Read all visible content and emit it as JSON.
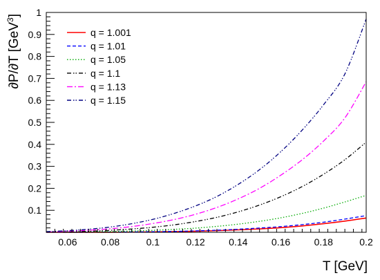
{
  "chart_data": {
    "type": "line",
    "xlabel": "T [GeV]",
    "ylabel_main": "∂P/∂T [GeV",
    "ylabel_sup": "3",
    "ylabel_close": "]",
    "xlim": [
      0.05,
      0.2
    ],
    "ylim": [
      0,
      1
    ],
    "x_ticks": [
      0.06,
      0.08,
      0.1,
      0.12,
      0.14,
      0.16,
      0.18,
      0.2
    ],
    "x_tick_labels": [
      "0.06",
      "0.08",
      "0.1",
      "0.12",
      "0.14",
      "0.16",
      "0.18",
      "0.2"
    ],
    "y_ticks": [
      0.1,
      0.2,
      0.3,
      0.4,
      0.5,
      0.6,
      0.7,
      0.8,
      0.9,
      1
    ],
    "y_tick_labels": [
      "0.1",
      "0.2",
      "0.3",
      "0.4",
      "0.5",
      "0.6",
      "0.7",
      "0.8",
      "0.9",
      "1"
    ],
    "grid": false,
    "legend_position": "top-left",
    "x": [
      0.05,
      0.06,
      0.07,
      0.08,
      0.09,
      0.1,
      0.11,
      0.12,
      0.13,
      0.14,
      0.15,
      0.16,
      0.17,
      0.18,
      0.19,
      0.2
    ],
    "series": [
      {
        "name": "q = 1.001",
        "color": "#ff0000",
        "dash": "solid",
        "values": [
          0.0,
          0.0,
          0.0001,
          0.0003,
          0.0008,
          0.0017,
          0.003,
          0.0048,
          0.0075,
          0.011,
          0.0155,
          0.021,
          0.029,
          0.039,
          0.051,
          0.065
        ]
      },
      {
        "name": "q = 1.01",
        "color": "#0000ff",
        "dash": "dashed",
        "values": [
          0.0,
          0.0001,
          0.0003,
          0.0007,
          0.0014,
          0.0025,
          0.004,
          0.0065,
          0.0095,
          0.014,
          0.0195,
          0.026,
          0.035,
          0.046,
          0.06,
          0.076
        ]
      },
      {
        "name": "q = 1.05",
        "color": "#00aa00",
        "dash": "dotted",
        "values": [
          0.0005,
          0.001,
          0.002,
          0.0035,
          0.006,
          0.009,
          0.0135,
          0.019,
          0.027,
          0.037,
          0.05,
          0.066,
          0.086,
          0.11,
          0.138,
          0.168
        ]
      },
      {
        "name": "q = 1.1",
        "color": "#000000",
        "dash": "dashdotdot",
        "values": [
          0.001,
          0.0025,
          0.005,
          0.009,
          0.015,
          0.023,
          0.034,
          0.049,
          0.068,
          0.093,
          0.124,
          0.162,
          0.208,
          0.264,
          0.33,
          0.41
        ]
      },
      {
        "name": "q = 1.13",
        "color": "#ff00ff",
        "dash": "dashdot",
        "values": [
          0.002,
          0.005,
          0.0095,
          0.016,
          0.026,
          0.04,
          0.058,
          0.082,
          0.113,
          0.152,
          0.2,
          0.26,
          0.33,
          0.415,
          0.52,
          0.685
        ]
      },
      {
        "name": "q = 1.15",
        "color": "#000080",
        "dash": "dashdotdot",
        "values": [
          0.003,
          0.0075,
          0.014,
          0.024,
          0.039,
          0.059,
          0.086,
          0.12,
          0.163,
          0.218,
          0.285,
          0.367,
          0.465,
          0.58,
          0.72,
          0.97
        ]
      }
    ]
  }
}
